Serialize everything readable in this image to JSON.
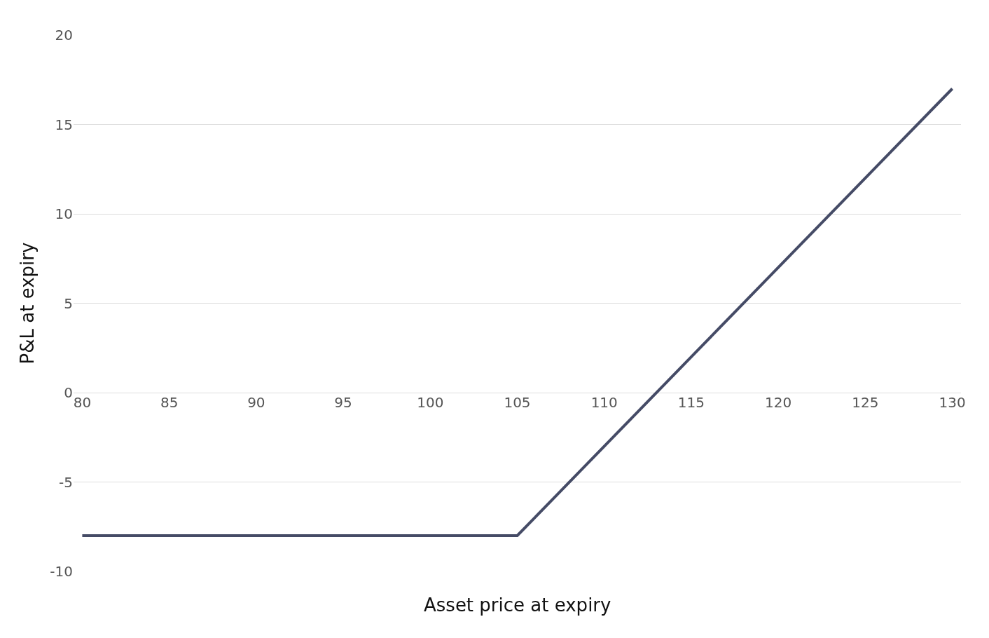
{
  "chart_data": {
    "type": "line",
    "xlabel": "Asset price at expiry",
    "ylabel": "P&L at expiry",
    "x": [
      80,
      105,
      130
    ],
    "series": [
      {
        "color": "#454b66",
        "values": [
          -8,
          -8,
          17
        ]
      }
    ],
    "xlim": [
      79.5,
      130.5
    ],
    "xticks": [
      80,
      85,
      90,
      95,
      100,
      105,
      110,
      115,
      120,
      125,
      130
    ],
    "ylim": [
      -10,
      20
    ],
    "yticks": [
      -10,
      -5,
      0,
      5,
      10,
      15,
      20
    ],
    "grid": "y",
    "marker": "none",
    "line_style": "solid"
  }
}
